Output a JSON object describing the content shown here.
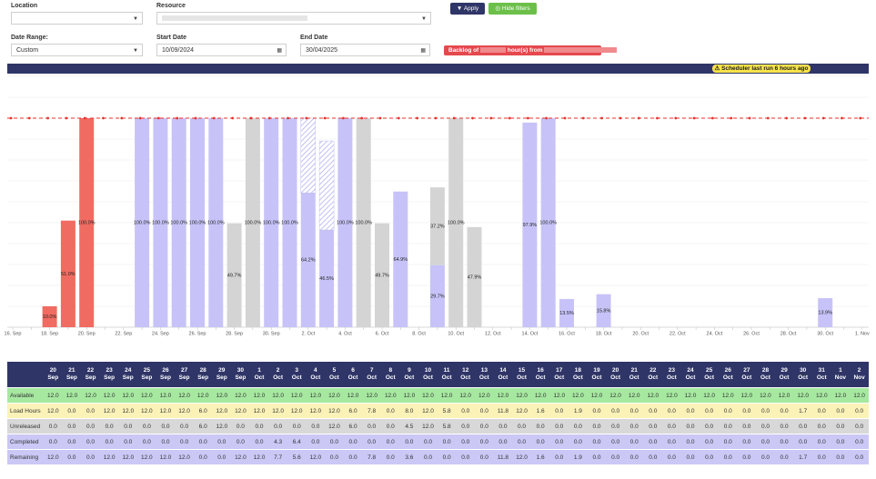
{
  "filters": {
    "location_label": "Location",
    "resource_label": "Resource",
    "date_range_label": "Date Range:",
    "date_range_value": "Custom",
    "start_label": "Start Date",
    "start_value": "10/09/2024",
    "end_label": "End Date",
    "end_value": "30/04/2025",
    "apply": "Apply",
    "hide": "Hide filters",
    "backlog_prefix": "Backlog of",
    "backlog_middle": "hour(s) from"
  },
  "banner": "Scheduler last run 6 hours ago",
  "chart_data": {
    "type": "bar",
    "stacked": true,
    "ylim": [
      0,
      120
    ],
    "yticks": [
      0,
      10,
      20,
      30,
      40,
      50,
      60,
      70,
      80,
      90,
      100,
      110,
      120
    ],
    "grid": true,
    "reference_line": 100,
    "reference_color": "#e8322b",
    "categories": [
      "16. Sep",
      null,
      "18. Sep",
      null,
      "20. Sep",
      null,
      "22. Sep",
      null,
      "24. Sep",
      null,
      "26. Sep",
      null,
      "28. Sep",
      null,
      "30. Sep",
      null,
      "2. Oct",
      null,
      "4. Oct",
      null,
      "6. Oct",
      null,
      "8. Oct",
      null,
      "10. Oct",
      null,
      "12. Oct",
      null,
      "14. Oct",
      null,
      "16. Oct",
      null,
      "18. Oct",
      null,
      "20. Oct",
      null,
      "22. Oct",
      null,
      "24. Oct",
      null,
      "26. Oct",
      null,
      "28. Oct",
      null,
      "30. Oct",
      null,
      "1. Nov"
    ],
    "series": [
      {
        "color": "#f06b62",
        "values": [
          null,
          null,
          10,
          51,
          100,
          null,
          null,
          null,
          null,
          null,
          null,
          null,
          null,
          null,
          null,
          null,
          null,
          null,
          null,
          null,
          null,
          null,
          null,
          null,
          null,
          null,
          null,
          null,
          null,
          null,
          null,
          null,
          null,
          null,
          null,
          null,
          null,
          null,
          null,
          null,
          null,
          null,
          null,
          null,
          null,
          null,
          null
        ],
        "value_labels": [
          null,
          null,
          "10.0%",
          "51.0%",
          "100.0%",
          null,
          null,
          null,
          null,
          null,
          null,
          null,
          null,
          null,
          null,
          null,
          null,
          null,
          null,
          null,
          null,
          null,
          null,
          null,
          null,
          null,
          null,
          null,
          null,
          null,
          null,
          null,
          null,
          null,
          null,
          null,
          null,
          null,
          null,
          null,
          null,
          null,
          null,
          null,
          null,
          null,
          null
        ]
      },
      {
        "color": "#c7c3f8",
        "values": [
          null,
          null,
          null,
          null,
          null,
          null,
          null,
          100,
          100,
          100,
          100,
          100,
          null,
          null,
          100,
          100,
          64.2,
          46.5,
          100,
          null,
          null,
          64.9,
          null,
          29.7,
          null,
          null,
          null,
          null,
          97.9,
          100,
          13.5,
          null,
          15.8,
          null,
          null,
          null,
          null,
          null,
          null,
          null,
          null,
          null,
          null,
          null,
          13.9,
          null,
          null
        ],
        "value_labels": [
          null,
          null,
          null,
          null,
          null,
          null,
          null,
          "100.0%",
          "100.0%",
          "100.0%",
          "100.0%",
          "100.0%",
          null,
          null,
          "100.0%",
          "100.0%",
          "64.2%",
          "46.5%",
          "100.0%",
          null,
          null,
          "64.9%",
          null,
          "29.7%",
          null,
          null,
          null,
          null,
          "97.9%",
          "100.0%",
          "13.5%",
          null,
          "15.8%",
          null,
          null,
          null,
          null,
          null,
          null,
          null,
          null,
          null,
          null,
          null,
          "13.9%",
          null,
          null
        ]
      },
      {
        "color": "#d4d4d4",
        "values": [
          null,
          null,
          null,
          null,
          null,
          null,
          null,
          null,
          null,
          null,
          null,
          null,
          49.7,
          100,
          null,
          null,
          null,
          null,
          null,
          100,
          49.7,
          null,
          null,
          37.2,
          100,
          47.9,
          null,
          null,
          null,
          null,
          null,
          null,
          null,
          null,
          null,
          null,
          null,
          null,
          null,
          null,
          null,
          null,
          null,
          null,
          null,
          null,
          null
        ],
        "value_labels": [
          null,
          null,
          null,
          null,
          null,
          null,
          null,
          null,
          null,
          null,
          null,
          null,
          "49.7%",
          "100.0%",
          null,
          null,
          null,
          null,
          null,
          "100.0%",
          "49.7%",
          null,
          null,
          "37.2%",
          "100.0%",
          "47.9%",
          null,
          null,
          null,
          null,
          null,
          null,
          null,
          null,
          null,
          null,
          null,
          null,
          null,
          null,
          null,
          null,
          null,
          null,
          null,
          null,
          null
        ]
      },
      {
        "color": "#b3aff0",
        "pattern": "hatch",
        "values": [
          null,
          null,
          null,
          null,
          null,
          null,
          null,
          null,
          null,
          null,
          null,
          null,
          null,
          null,
          null,
          null,
          35.8,
          42.6,
          null,
          null,
          null,
          null,
          null,
          null,
          null,
          null,
          null,
          null,
          null,
          null,
          null,
          null,
          null,
          null,
          null,
          null,
          null,
          null,
          null,
          null,
          null,
          null,
          null,
          null,
          null,
          null,
          null
        ]
      }
    ]
  },
  "table": {
    "columns": [
      [
        "20",
        "Sep"
      ],
      [
        "21",
        "Sep"
      ],
      [
        "22",
        "Sep"
      ],
      [
        "23",
        "Sep"
      ],
      [
        "24",
        "Sep"
      ],
      [
        "25",
        "Sep"
      ],
      [
        "26",
        "Sep"
      ],
      [
        "27",
        "Sep"
      ],
      [
        "28",
        "Sep"
      ],
      [
        "29",
        "Sep"
      ],
      [
        "30",
        "Sep"
      ],
      [
        "1",
        "Oct"
      ],
      [
        "2",
        "Oct"
      ],
      [
        "3",
        "Oct"
      ],
      [
        "4",
        "Oct"
      ],
      [
        "5",
        "Oct"
      ],
      [
        "6",
        "Oct"
      ],
      [
        "7",
        "Oct"
      ],
      [
        "8",
        "Oct"
      ],
      [
        "9",
        "Oct"
      ],
      [
        "10",
        "Oct"
      ],
      [
        "11",
        "Oct"
      ],
      [
        "12",
        "Oct"
      ],
      [
        "13",
        "Oct"
      ],
      [
        "14",
        "Oct"
      ],
      [
        "15",
        "Oct"
      ],
      [
        "16",
        "Oct"
      ],
      [
        "17",
        "Oct"
      ],
      [
        "18",
        "Oct"
      ],
      [
        "19",
        "Oct"
      ],
      [
        "20",
        "Oct"
      ],
      [
        "21",
        "Oct"
      ],
      [
        "22",
        "Oct"
      ],
      [
        "23",
        "Oct"
      ],
      [
        "24",
        "Oct"
      ],
      [
        "25",
        "Oct"
      ],
      [
        "26",
        "Oct"
      ],
      [
        "27",
        "Oct"
      ],
      [
        "28",
        "Oct"
      ],
      [
        "29",
        "Oct"
      ],
      [
        "30",
        "Oct"
      ],
      [
        "31",
        "Oct"
      ],
      [
        "1",
        "Nov"
      ],
      [
        "2",
        "Nov"
      ]
    ],
    "rows": [
      {
        "label": "Available",
        "color": "#a6e8a0",
        "values": [
          "12.0",
          "12.0",
          "12.0",
          "12.0",
          "12.0",
          "12.0",
          "12.0",
          "12.0",
          "12.0",
          "12.0",
          "12.0",
          "12.0",
          "12.0",
          "12.0",
          "12.0",
          "12.0",
          "12.0",
          "12.0",
          "12.0",
          "12.0",
          "12.0",
          "12.0",
          "12.0",
          "12.0",
          "12.0",
          "12.0",
          "12.0",
          "12.0",
          "12.0",
          "12.0",
          "12.0",
          "12.0",
          "12.0",
          "12.0",
          "12.0",
          "12.0",
          "12.0",
          "12.0",
          "12.0",
          "12.0",
          "12.0",
          "12.0",
          "12.0",
          "12.0"
        ]
      },
      {
        "label": "Load Hours",
        "color": "#fbf2b8",
        "values": [
          "12.0",
          "0.0",
          "0.0",
          "12.0",
          "12.0",
          "12.0",
          "12.0",
          "12.0",
          "6.0",
          "12.0",
          "12.0",
          "12.0",
          "12.0",
          "12.0",
          "12.0",
          "12.0",
          "6.0",
          "7.8",
          "0.0",
          "8.0",
          "12.0",
          "5.8",
          "0.0",
          "0.0",
          "11.8",
          "12.0",
          "1.6",
          "0.0",
          "1.9",
          "0.0",
          "0.0",
          "0.0",
          "0.0",
          "0.0",
          "0.0",
          "0.0",
          "0.0",
          "0.0",
          "0.0",
          "0.0",
          "1.7",
          "0.0",
          "0.0",
          "0.0"
        ]
      },
      {
        "label": "Unreleased",
        "color": "#d8d8d8",
        "values": [
          "0.0",
          "0.0",
          "0.0",
          "0.0",
          "0.0",
          "0.0",
          "0.0",
          "0.0",
          "6.0",
          "12.0",
          "0.0",
          "0.0",
          "0.0",
          "0.0",
          "0.0",
          "12.0",
          "6.0",
          "0.0",
          "0.0",
          "4.5",
          "12.0",
          "5.8",
          "0.0",
          "0.0",
          "0.0",
          "0.0",
          "0.0",
          "0.0",
          "0.0",
          "0.0",
          "0.0",
          "0.0",
          "0.0",
          "0.0",
          "0.0",
          "0.0",
          "0.0",
          "0.0",
          "0.0",
          "0.0",
          "0.0",
          "0.0",
          "0.0",
          "0.0"
        ]
      },
      {
        "label": "Completed",
        "color": "#cbc8f6",
        "values": [
          "0.0",
          "0.0",
          "0.0",
          "0.0",
          "0.0",
          "0.0",
          "0.0",
          "0.0",
          "0.0",
          "0.0",
          "0.0",
          "0.0",
          "4.3",
          "6.4",
          "0.0",
          "0.0",
          "0.0",
          "0.0",
          "0.0",
          "0.0",
          "0.0",
          "0.0",
          "0.0",
          "0.0",
          "0.0",
          "0.0",
          "0.0",
          "0.0",
          "0.0",
          "0.0",
          "0.0",
          "0.0",
          "0.0",
          "0.0",
          "0.0",
          "0.0",
          "0.0",
          "0.0",
          "0.0",
          "0.0",
          "0.0",
          "0.0",
          "0.0",
          "0.0"
        ]
      },
      {
        "label": "Remaining",
        "color": "#cbc8f6",
        "values": [
          "12.0",
          "0.0",
          "0.0",
          "12.0",
          "12.0",
          "12.0",
          "12.0",
          "12.0",
          "0.0",
          "0.0",
          "12.0",
          "12.0",
          "7.7",
          "5.6",
          "12.0",
          "0.0",
          "0.0",
          "7.8",
          "0.0",
          "3.6",
          "0.0",
          "0.0",
          "0.0",
          "0.0",
          "11.8",
          "12.0",
          "1.6",
          "0.0",
          "1.9",
          "0.0",
          "0.0",
          "0.0",
          "0.0",
          "0.0",
          "0.0",
          "0.0",
          "0.0",
          "0.0",
          "0.0",
          "0.0",
          "1.7",
          "0.0",
          "0.0",
          "0.0"
        ]
      }
    ]
  }
}
